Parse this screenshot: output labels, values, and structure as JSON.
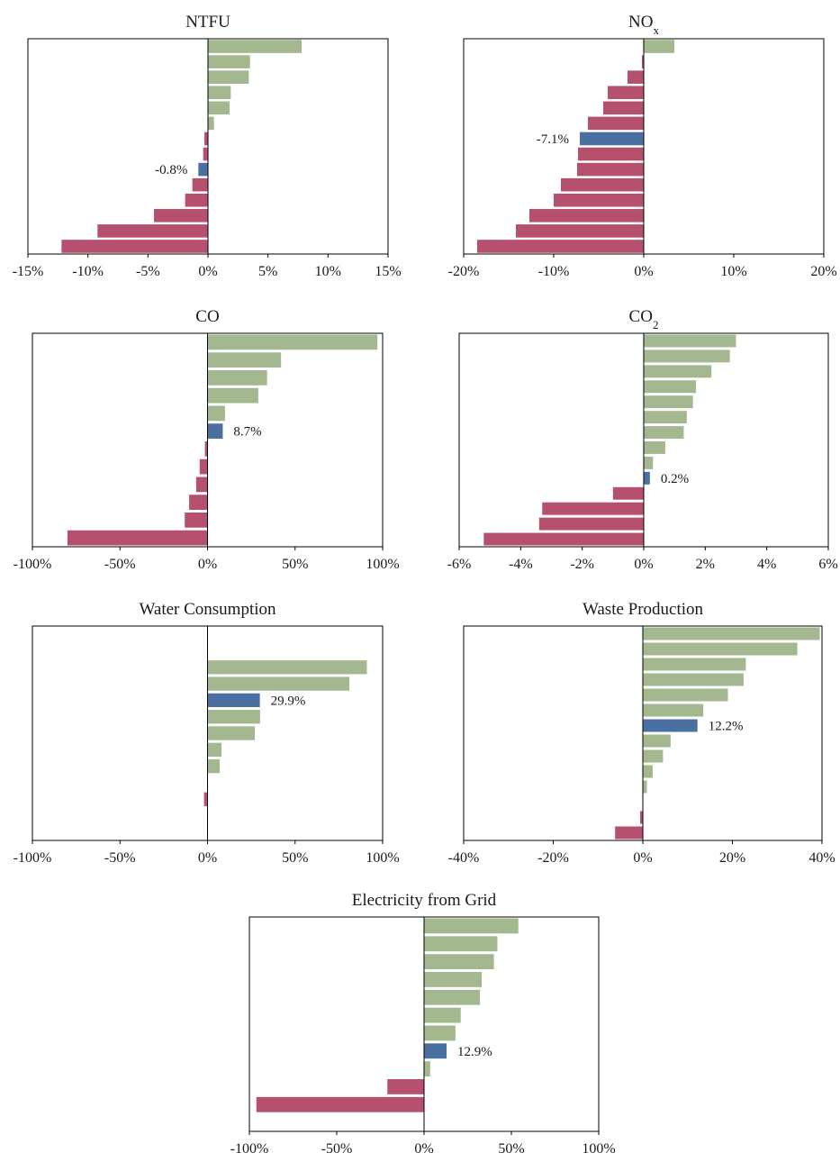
{
  "colors": {
    "positive": "#a3b88f",
    "negative": "#b5506f",
    "highlight": "#4a70a1"
  },
  "chart_data": [
    {
      "type": "bar",
      "orientation": "horizontal",
      "title": "NTFU",
      "xlim": [
        -15,
        15
      ],
      "xticks": [
        -15,
        -10,
        -5,
        0,
        5,
        10,
        15
      ],
      "xtick_labels": [
        "-15%",
        "-10%",
        "-5%",
        "0%",
        "5%",
        "10%",
        "15%"
      ],
      "values": [
        7.8,
        3.5,
        3.4,
        1.9,
        1.8,
        0.5,
        -0.3,
        -0.4,
        -0.8,
        -1.3,
        -1.9,
        -4.5,
        -9.2,
        -12.2
      ],
      "highlight_index": 8,
      "highlight_label": "-0.8%"
    },
    {
      "type": "bar",
      "orientation": "horizontal",
      "title": "NO",
      "title_sub": "x",
      "xlim": [
        -20,
        20
      ],
      "xticks": [
        -20,
        -10,
        0,
        10,
        20
      ],
      "xtick_labels": [
        "-20%",
        "-10%",
        "0%",
        "10%",
        "20%"
      ],
      "values": [
        3.4,
        -0.2,
        -1.8,
        -4.0,
        -4.5,
        -6.2,
        -7.1,
        -7.3,
        -7.4,
        -9.2,
        -10.0,
        -12.7,
        -14.2,
        -18.5
      ],
      "highlight_index": 6,
      "highlight_label": "-7.1%"
    },
    {
      "type": "bar",
      "orientation": "horizontal",
      "title": "CO",
      "xlim": [
        -100,
        100
      ],
      "xticks": [
        -100,
        -50,
        0,
        50,
        100
      ],
      "xtick_labels": [
        "-100%",
        "-50%",
        "0%",
        "50%",
        "100%"
      ],
      "values": [
        97,
        42,
        34,
        29,
        10,
        8.7,
        -1.5,
        -4.5,
        -6.5,
        -10.5,
        -13,
        -80
      ],
      "highlight_index": 5,
      "highlight_label": "8.7%"
    },
    {
      "type": "bar",
      "orientation": "horizontal",
      "title": "CO",
      "title_sub": "2",
      "xlim": [
        -6,
        6
      ],
      "xticks": [
        -6,
        -4,
        -2,
        0,
        2,
        4,
        6
      ],
      "xtick_labels": [
        "-6%",
        "-4%",
        "-2%",
        "0%",
        "2%",
        "4%",
        "6%"
      ],
      "values": [
        3.0,
        2.8,
        2.2,
        1.7,
        1.6,
        1.4,
        1.3,
        0.7,
        0.3,
        0.2,
        -1.0,
        -3.3,
        -3.4,
        -5.2
      ],
      "highlight_index": 9,
      "highlight_label": "0.2%"
    },
    {
      "type": "bar",
      "orientation": "horizontal",
      "title": "Water Consumption",
      "xlim": [
        -100,
        100
      ],
      "xticks": [
        -100,
        -50,
        0,
        50,
        100
      ],
      "xtick_labels": [
        "-100%",
        "-50%",
        "0%",
        "50%",
        "100%"
      ],
      "values": [
        null,
        null,
        91,
        81,
        29.9,
        30,
        27,
        8,
        7,
        null,
        -2,
        null,
        null
      ],
      "highlight_index": 4,
      "highlight_label": "29.9%"
    },
    {
      "type": "bar",
      "orientation": "horizontal",
      "title": "Waste Production",
      "xlim": [
        -40,
        40
      ],
      "xticks": [
        -40,
        -20,
        0,
        20,
        40
      ],
      "xtick_labels": [
        "-40%",
        "-20%",
        "0%",
        "20%",
        "40%"
      ],
      "values": [
        39.5,
        34.5,
        23,
        22.5,
        19,
        13.5,
        12.2,
        6.2,
        4.5,
        2.2,
        0.9,
        null,
        -0.6,
        -6.2
      ],
      "highlight_index": 6,
      "highlight_label": "12.2%"
    },
    {
      "type": "bar",
      "orientation": "horizontal",
      "title": "Electricity from Grid",
      "xlim": [
        -100,
        100
      ],
      "xticks": [
        -100,
        -50,
        0,
        50,
        100
      ],
      "xtick_labels": [
        "-100%",
        "-50%",
        "0%",
        "50%",
        "100%"
      ],
      "values": [
        54,
        42,
        40,
        33,
        32,
        21,
        18,
        12.9,
        3.5,
        -21,
        -96,
        null
      ],
      "highlight_index": 7,
      "highlight_label": "12.9%"
    }
  ]
}
